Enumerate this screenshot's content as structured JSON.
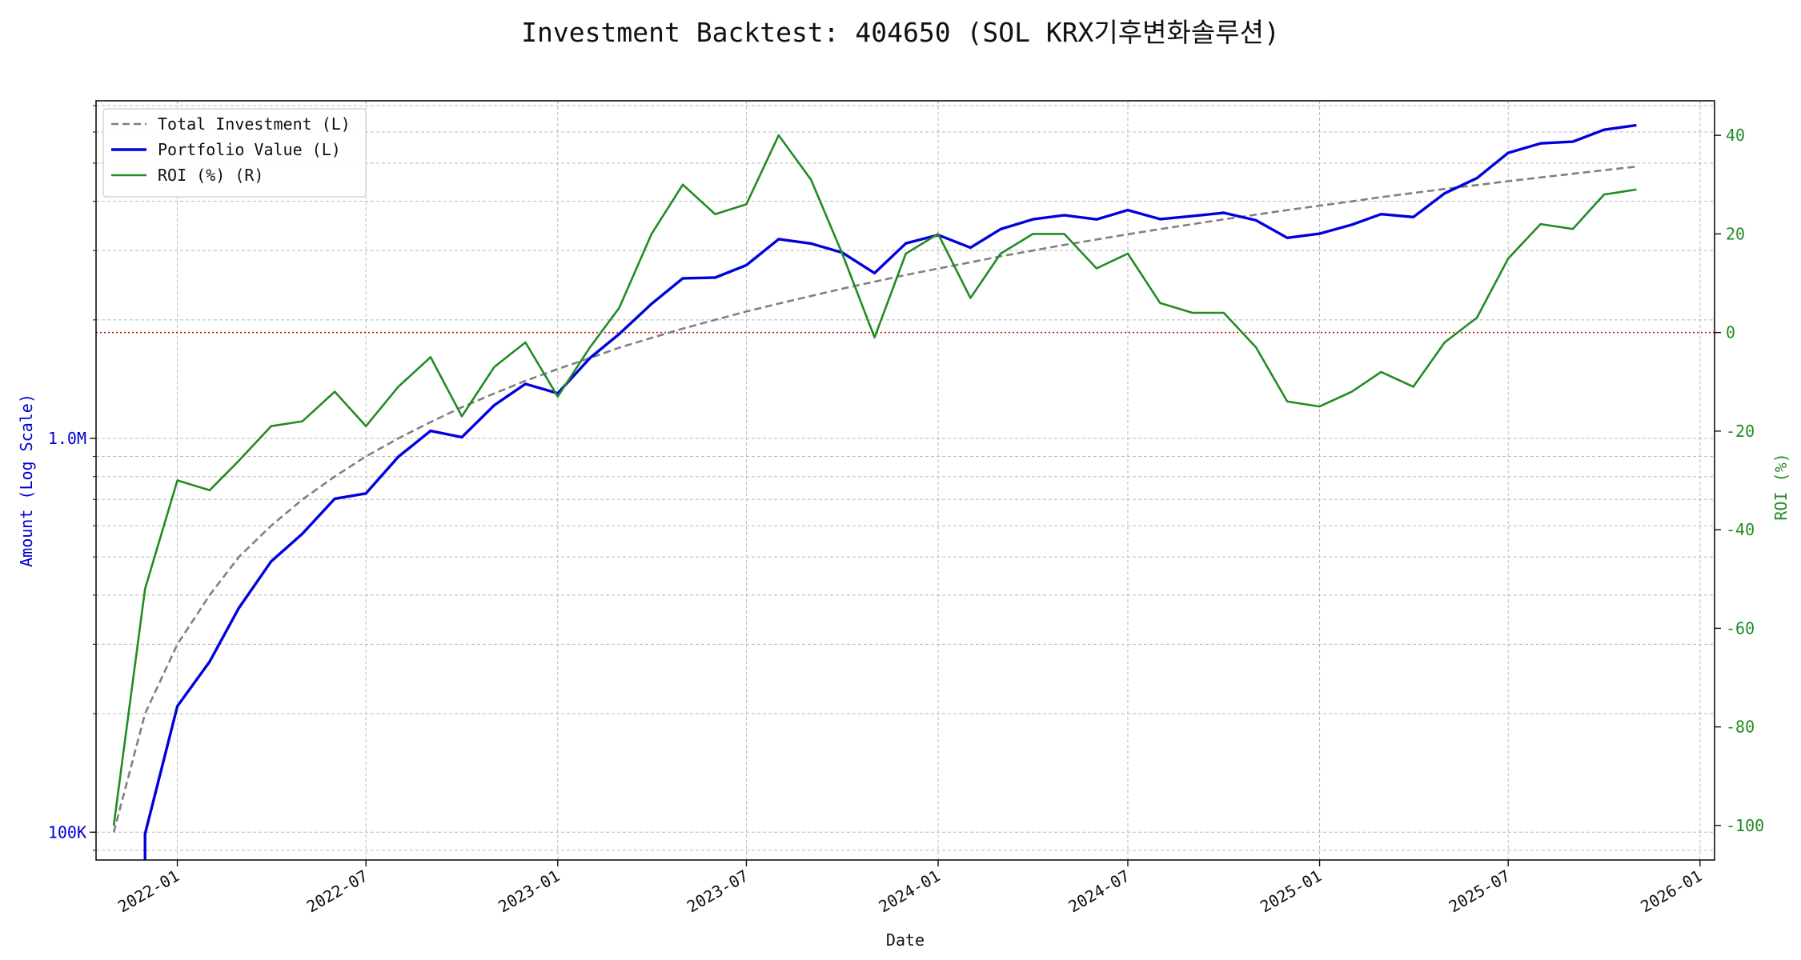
{
  "chart_data": {
    "type": "line",
    "title": "Investment Backtest: 404650 (SOL KRX기후변화솔루션)",
    "xlabel": "Date",
    "ylabel_left": "Amount (Log Scale)",
    "ylabel_right": "ROI (%)",
    "left_axis": {
      "scale": "log",
      "range": [
        85000,
        7200000
      ],
      "tick_values": [
        100000,
        1000000
      ],
      "tick_labels": [
        "100K",
        "1.0M"
      ],
      "color": "#0000cc"
    },
    "right_axis": {
      "scale": "linear",
      "range": [
        -107,
        47
      ],
      "tick_values": [
        -100,
        -80,
        -60,
        -40,
        -20,
        0,
        20,
        40
      ],
      "tick_labels": [
        "-100",
        "-80",
        "-60",
        "-40",
        "-20",
        "0",
        "20",
        "40"
      ],
      "color": "#228b22"
    },
    "x_axis": {
      "range": [
        "2021-10-15",
        "2026-01-15"
      ],
      "tick_dates": [
        "2022-01-01",
        "2022-07-01",
        "2023-01-01",
        "2023-07-01",
        "2024-01-01",
        "2024-07-01",
        "2025-01-01",
        "2025-07-01",
        "2026-01-01"
      ],
      "tick_labels": [
        "2022-01",
        "2022-07",
        "2023-01",
        "2023-07",
        "2024-01",
        "2024-07",
        "2025-01",
        "2025-07",
        "2026-01"
      ]
    },
    "grid": true,
    "legend_position": "upper-left",
    "zero_line": {
      "value": 0,
      "axis": "right",
      "color": "#cc0000",
      "style": "dotted"
    },
    "x": [
      "2021-11-01",
      "2021-12-01",
      "2022-01-01",
      "2022-02-01",
      "2022-03-01",
      "2022-04-01",
      "2022-05-01",
      "2022-06-01",
      "2022-07-01",
      "2022-08-01",
      "2022-09-01",
      "2022-10-01",
      "2022-11-01",
      "2022-12-01",
      "2023-01-01",
      "2023-02-01",
      "2023-03-01",
      "2023-04-01",
      "2023-05-01",
      "2023-06-01",
      "2023-07-01",
      "2023-08-01",
      "2023-09-01",
      "2023-10-01",
      "2023-11-01",
      "2023-12-01",
      "2024-01-01",
      "2024-02-01",
      "2024-03-01",
      "2024-04-01",
      "2024-05-01",
      "2024-06-01",
      "2024-07-01",
      "2024-08-01",
      "2024-09-01",
      "2024-10-01",
      "2024-11-01",
      "2024-12-01",
      "2025-01-01",
      "2025-02-01",
      "2025-03-01",
      "2025-04-01",
      "2025-05-01",
      "2025-06-01",
      "2025-07-01",
      "2025-08-01",
      "2025-09-01",
      "2025-10-01",
      "2025-11-01"
    ],
    "series": [
      {
        "name": "Total Investment (L)",
        "axis": "left",
        "color": "#808080",
        "style": "dashed",
        "values": [
          100000,
          200000,
          300000,
          400000,
          500000,
          600000,
          700000,
          800000,
          900000,
          1000000,
          1100000,
          1200000,
          1300000,
          1400000,
          1500000,
          1600000,
          1700000,
          1800000,
          1900000,
          2000000,
          2100000,
          2200000,
          2300000,
          2400000,
          2500000,
          2600000,
          2700000,
          2800000,
          2900000,
          3000000,
          3100000,
          3200000,
          3300000,
          3400000,
          3500000,
          3600000,
          3700000,
          3800000,
          3900000,
          4000000,
          4100000,
          4200000,
          4300000,
          4400000,
          4500000,
          4600000,
          4700000,
          4800000,
          4900000
        ]
      },
      {
        "name": "Portfolio Value (L)",
        "axis": "left",
        "color": "#0000dd",
        "style": "solid",
        "values": [
          null,
          99000,
          209000,
          271000,
          371000,
          487000,
          573000,
          703000,
          725000,
          898000,
          1045000,
          1007000,
          1214000,
          1375000,
          1302000,
          1600000,
          1841000,
          2197000,
          2550000,
          2561000,
          2753000,
          3207000,
          3125000,
          2964000,
          2629000,
          3129000,
          3286000,
          3050000,
          3400000,
          3601000,
          3689000,
          3599000,
          3800000,
          3604000,
          3670000,
          3741000,
          3580000,
          3231000,
          3310000,
          3489000,
          3711000,
          3648000,
          4190000,
          4581000,
          5309000,
          5613000,
          5669000,
          6079000,
          6242000
        ]
      },
      {
        "name": "ROI (%) (R)",
        "axis": "right",
        "color": "#228b22",
        "style": "solid",
        "values": [
          -100,
          -52,
          -30,
          -32,
          -26,
          -19,
          -18,
          -12,
          -19,
          -11,
          -5,
          -17,
          -7,
          -2,
          -13,
          -3,
          5,
          20,
          30,
          24,
          26,
          40,
          31,
          16,
          -1,
          16,
          20,
          7,
          16,
          20,
          20,
          13,
          16,
          6,
          4,
          4,
          -3,
          -14,
          -15,
          -12,
          -8,
          -11,
          -2,
          3,
          15,
          22,
          21,
          28,
          29
        ]
      }
    ]
  }
}
